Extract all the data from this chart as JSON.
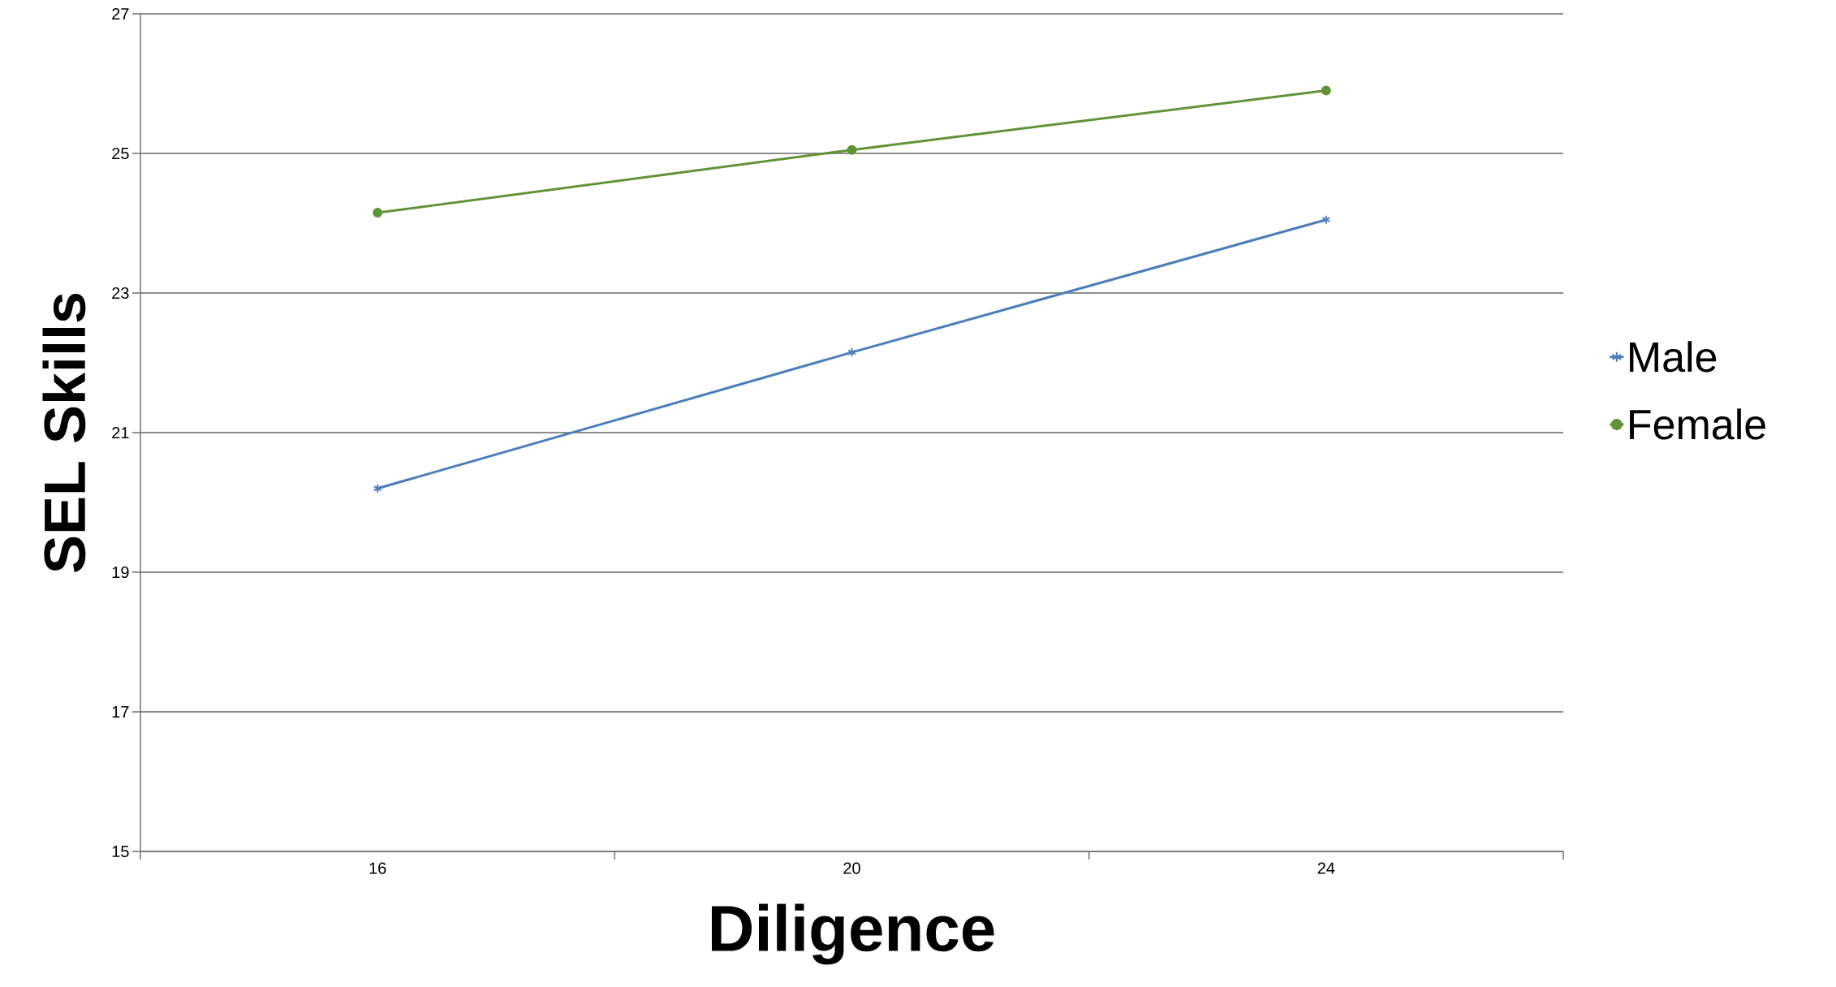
{
  "chart_data": {
    "type": "line",
    "xlabel": "Diligence",
    "ylabel": "SEL Skills",
    "categories": [
      "16",
      "20",
      "24"
    ],
    "series": [
      {
        "name": "Male",
        "color": "#4a7ebb",
        "marker": "cross",
        "values": [
          20.2,
          22.15,
          24.05
        ]
      },
      {
        "name": "Female",
        "color": "#5f9437",
        "marker": "circle",
        "values": [
          24.15,
          25.05,
          25.9
        ]
      }
    ],
    "ylim": [
      15,
      27
    ],
    "yticks": [
      15,
      17,
      19,
      21,
      23,
      25,
      27
    ],
    "grid": "y",
    "legend": "right"
  }
}
